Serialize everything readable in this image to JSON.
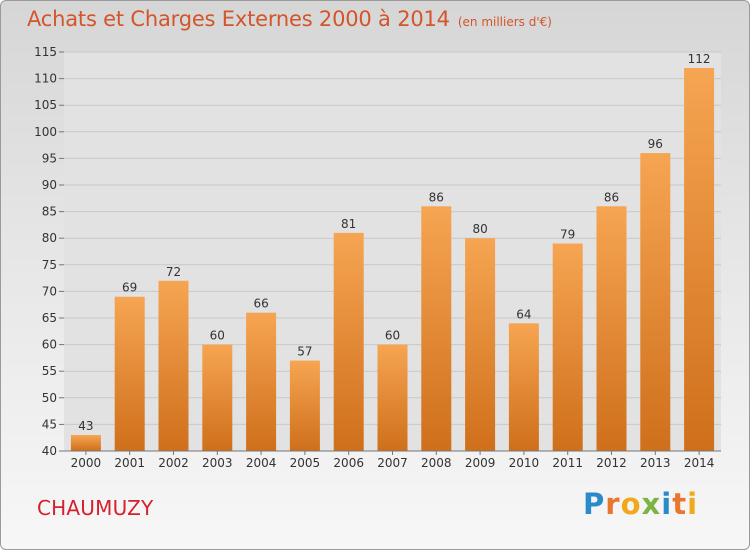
{
  "title": "Achats et Charges Externes 2000 à 2014",
  "subtitle": "(en milliers d'€)",
  "place": "CHAUMUZY",
  "logo": {
    "letters": [
      "P",
      "r",
      "o",
      "x",
      "i",
      "t",
      "i"
    ],
    "colors": [
      "#2a8bc9",
      "#e8762e",
      "#f2a81d",
      "#7cb342",
      "#2a8bc9",
      "#e8762e",
      "#f2a81d"
    ]
  },
  "colors": {
    "bar_top": "#f6a552",
    "bar_bottom": "#cf6f1b",
    "title": "#d2562a",
    "place": "#d5212b"
  },
  "chart_data": {
    "type": "bar",
    "title": "Achats et Charges Externes 2000 à 2014",
    "subtitle": "(en milliers d'€)",
    "categories": [
      "2000",
      "2001",
      "2002",
      "2003",
      "2004",
      "2005",
      "2006",
      "2007",
      "2008",
      "2009",
      "2010",
      "2011",
      "2012",
      "2013",
      "2014"
    ],
    "values": [
      43,
      69,
      72,
      60,
      66,
      57,
      81,
      60,
      86,
      80,
      64,
      79,
      86,
      96,
      112
    ],
    "ylim": [
      40,
      115
    ],
    "yticks": [
      40,
      45,
      50,
      55,
      60,
      65,
      70,
      75,
      80,
      85,
      90,
      95,
      100,
      105,
      110,
      115
    ],
    "grid": true,
    "xlabel": "",
    "ylabel": ""
  }
}
